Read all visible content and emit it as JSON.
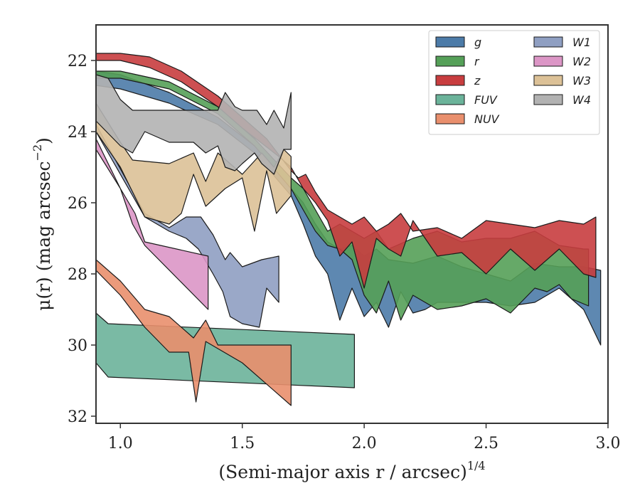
{
  "chart_data": {
    "type": "area",
    "xlabel": "(Semi-major axis r / arcsec)",
    "xlabel_sup": "1/4",
    "ylabel": "μ(r) (mag arcsec",
    "ylabel_sup": "−2",
    "ylabel_close": ")",
    "xlim": [
      0.9,
      3.0
    ],
    "ylim": [
      32.2,
      21.0
    ],
    "y_inverted": true,
    "xticks": [
      1.0,
      1.5,
      2.0,
      2.5,
      3.0
    ],
    "xtick_labels": [
      "1.0",
      "1.5",
      "2.0",
      "2.5",
      "3.0"
    ],
    "yticks": [
      22,
      24,
      26,
      28,
      30,
      32
    ],
    "ytick_labels": [
      "22",
      "24",
      "26",
      "28",
      "30",
      "32"
    ],
    "legend_position": "top-right",
    "series": [
      {
        "name": "g",
        "color": "#4c7ba8",
        "upper": [
          [
            0.9,
            22.3
          ],
          [
            1.0,
            22.4
          ],
          [
            1.2,
            22.9
          ],
          [
            1.4,
            23.6
          ],
          [
            1.55,
            24.4
          ],
          [
            1.7,
            25.6
          ],
          [
            1.75,
            26.0
          ],
          [
            1.8,
            26.6
          ],
          [
            1.85,
            27.1
          ],
          [
            1.9,
            27.3
          ],
          [
            1.95,
            27.2
          ],
          [
            2.0,
            27.5
          ],
          [
            2.05,
            27.3
          ],
          [
            2.1,
            27.6
          ],
          [
            2.2,
            27.7
          ],
          [
            2.3,
            27.5
          ],
          [
            2.4,
            27.8
          ],
          [
            2.5,
            28.0
          ],
          [
            2.6,
            28.2
          ],
          [
            2.7,
            27.7
          ],
          [
            2.8,
            27.8
          ],
          [
            2.9,
            27.8
          ],
          [
            2.97,
            27.9
          ]
        ],
        "lower": [
          [
            2.97,
            30.0
          ],
          [
            2.9,
            29.0
          ],
          [
            2.8,
            28.4
          ],
          [
            2.7,
            28.8
          ],
          [
            2.6,
            28.9
          ],
          [
            2.5,
            28.8
          ],
          [
            2.4,
            28.8
          ],
          [
            2.3,
            28.8
          ],
          [
            2.25,
            29.0
          ],
          [
            2.2,
            29.1
          ],
          [
            2.15,
            28.5
          ],
          [
            2.1,
            29.5
          ],
          [
            2.05,
            28.8
          ],
          [
            2.0,
            29.2
          ],
          [
            1.95,
            28.4
          ],
          [
            1.9,
            29.3
          ],
          [
            1.85,
            28.0
          ],
          [
            1.8,
            27.5
          ],
          [
            1.75,
            26.6
          ],
          [
            1.7,
            25.8
          ],
          [
            1.55,
            24.6
          ],
          [
            1.4,
            23.8
          ],
          [
            1.2,
            23.2
          ],
          [
            1.0,
            22.8
          ],
          [
            0.9,
            22.7
          ]
        ]
      },
      {
        "name": "r",
        "color": "#55a058",
        "upper": [
          [
            0.9,
            22.3
          ],
          [
            1.0,
            22.3
          ],
          [
            1.2,
            22.6
          ],
          [
            1.4,
            23.3
          ],
          [
            1.55,
            24.2
          ],
          [
            1.7,
            25.3
          ],
          [
            1.75,
            25.6
          ],
          [
            1.8,
            26.2
          ],
          [
            1.85,
            26.8
          ],
          [
            1.9,
            26.6
          ],
          [
            1.95,
            26.8
          ],
          [
            2.0,
            27.0
          ],
          [
            2.05,
            26.8
          ],
          [
            2.1,
            27.3
          ],
          [
            2.2,
            27.0
          ],
          [
            2.3,
            26.8
          ],
          [
            2.4,
            27.1
          ],
          [
            2.5,
            27.0
          ],
          [
            2.6,
            27.0
          ],
          [
            2.7,
            26.8
          ],
          [
            2.8,
            27.2
          ],
          [
            2.9,
            27.3
          ],
          [
            2.92,
            27.3
          ]
        ],
        "lower": [
          [
            2.92,
            28.9
          ],
          [
            2.85,
            28.7
          ],
          [
            2.8,
            28.3
          ],
          [
            2.75,
            28.5
          ],
          [
            2.7,
            28.4
          ],
          [
            2.6,
            29.1
          ],
          [
            2.5,
            28.7
          ],
          [
            2.4,
            28.9
          ],
          [
            2.3,
            29.0
          ],
          [
            2.2,
            28.6
          ],
          [
            2.15,
            29.3
          ],
          [
            2.1,
            28.2
          ],
          [
            2.05,
            29.1
          ],
          [
            2.0,
            28.6
          ],
          [
            1.95,
            27.6
          ],
          [
            1.9,
            27.3
          ],
          [
            1.85,
            27.2
          ],
          [
            1.8,
            26.8
          ],
          [
            1.75,
            26.2
          ],
          [
            1.7,
            25.6
          ],
          [
            1.55,
            24.4
          ],
          [
            1.4,
            23.5
          ],
          [
            1.2,
            22.8
          ],
          [
            1.0,
            22.5
          ],
          [
            0.9,
            22.5
          ]
        ]
      },
      {
        "name": "z",
        "color": "#c83d3f",
        "upper": [
          [
            0.9,
            21.8
          ],
          [
            1.0,
            21.8
          ],
          [
            1.12,
            21.9
          ],
          [
            1.25,
            22.3
          ],
          [
            1.4,
            23.0
          ],
          [
            1.5,
            23.6
          ],
          [
            1.6,
            24.2
          ],
          [
            1.7,
            25.1
          ],
          [
            1.73,
            25.3
          ],
          [
            1.76,
            25.2
          ],
          [
            1.8,
            25.7
          ],
          [
            1.85,
            26.2
          ],
          [
            1.9,
            26.4
          ],
          [
            1.95,
            26.6
          ],
          [
            2.0,
            26.4
          ],
          [
            2.05,
            26.8
          ],
          [
            2.1,
            26.6
          ],
          [
            2.15,
            26.3
          ],
          [
            2.2,
            26.8
          ],
          [
            2.3,
            26.7
          ],
          [
            2.4,
            27.0
          ],
          [
            2.5,
            26.5
          ],
          [
            2.6,
            26.6
          ],
          [
            2.7,
            26.7
          ],
          [
            2.8,
            26.5
          ],
          [
            2.9,
            26.6
          ],
          [
            2.95,
            26.4
          ]
        ],
        "lower": [
          [
            2.95,
            28.1
          ],
          [
            2.9,
            28.0
          ],
          [
            2.8,
            27.3
          ],
          [
            2.7,
            27.9
          ],
          [
            2.6,
            27.3
          ],
          [
            2.5,
            28.0
          ],
          [
            2.4,
            27.4
          ],
          [
            2.3,
            27.5
          ],
          [
            2.2,
            26.5
          ],
          [
            2.15,
            27.5
          ],
          [
            2.1,
            27.3
          ],
          [
            2.05,
            27.0
          ],
          [
            2.0,
            28.4
          ],
          [
            1.95,
            27.1
          ],
          [
            1.9,
            27.5
          ],
          [
            1.85,
            26.5
          ],
          [
            1.8,
            26.0
          ],
          [
            1.75,
            25.6
          ],
          [
            1.7,
            25.0
          ],
          [
            1.65,
            24.7
          ],
          [
            1.5,
            23.9
          ],
          [
            1.4,
            23.3
          ],
          [
            1.25,
            22.6
          ],
          [
            1.12,
            22.2
          ],
          [
            1.0,
            22.0
          ],
          [
            0.9,
            22.0
          ]
        ]
      },
      {
        "name": "FUV",
        "color": "#6bb39a",
        "upper": [
          [
            0.9,
            29.1
          ],
          [
            0.95,
            29.4
          ],
          [
            1.96,
            29.7
          ]
        ],
        "lower": [
          [
            1.96,
            31.2
          ],
          [
            0.95,
            30.9
          ],
          [
            0.9,
            30.5
          ]
        ]
      },
      {
        "name": "NUV",
        "color": "#e98f6d",
        "upper": [
          [
            0.9,
            27.6
          ],
          [
            1.0,
            28.2
          ],
          [
            1.1,
            29.0
          ],
          [
            1.2,
            29.2
          ],
          [
            1.3,
            29.8
          ],
          [
            1.35,
            29.3
          ],
          [
            1.4,
            30.0
          ],
          [
            1.7,
            30.0
          ]
        ],
        "lower": [
          [
            1.7,
            31.7
          ],
          [
            1.5,
            30.5
          ],
          [
            1.4,
            30.1
          ],
          [
            1.35,
            29.9
          ],
          [
            1.31,
            31.6
          ],
          [
            1.28,
            30.2
          ],
          [
            1.2,
            30.2
          ],
          [
            1.1,
            29.5
          ],
          [
            1.0,
            28.6
          ],
          [
            0.9,
            27.9
          ]
        ]
      },
      {
        "name": "W1",
        "color": "#8f9fc2",
        "upper": [
          [
            0.9,
            23.8
          ],
          [
            1.1,
            26.3
          ],
          [
            1.2,
            26.7
          ],
          [
            1.27,
            26.4
          ],
          [
            1.33,
            26.4
          ],
          [
            1.38,
            26.9
          ],
          [
            1.43,
            27.6
          ],
          [
            1.45,
            27.4
          ],
          [
            1.5,
            27.8
          ],
          [
            1.58,
            27.6
          ],
          [
            1.65,
            27.5
          ]
        ],
        "lower": [
          [
            1.65,
            28.8
          ],
          [
            1.6,
            28.4
          ],
          [
            1.57,
            29.5
          ],
          [
            1.5,
            29.4
          ],
          [
            1.45,
            29.2
          ],
          [
            1.42,
            28.5
          ],
          [
            1.38,
            28.0
          ],
          [
            1.32,
            27.3
          ],
          [
            1.27,
            27.0
          ],
          [
            1.2,
            26.8
          ],
          [
            1.1,
            26.4
          ],
          [
            0.9,
            24.0
          ]
        ]
      },
      {
        "name": "W2",
        "color": "#dc96c6",
        "upper": [
          [
            0.9,
            24.2
          ],
          [
            1.0,
            25.6
          ],
          [
            1.06,
            26.3
          ],
          [
            1.1,
            27.1
          ],
          [
            1.36,
            27.5
          ]
        ],
        "lower": [
          [
            1.36,
            29.0
          ],
          [
            1.1,
            27.2
          ],
          [
            1.05,
            26.6
          ],
          [
            1.0,
            25.6
          ],
          [
            0.9,
            24.5
          ]
        ]
      },
      {
        "name": "W3",
        "color": "#dcc197",
        "upper": [
          [
            0.9,
            23.2
          ],
          [
            1.0,
            24.3
          ],
          [
            1.05,
            24.8
          ],
          [
            1.2,
            24.9
          ],
          [
            1.3,
            24.6
          ],
          [
            1.35,
            25.4
          ],
          [
            1.4,
            24.6
          ],
          [
            1.5,
            25.2
          ],
          [
            1.58,
            24.6
          ],
          [
            1.63,
            25.0
          ],
          [
            1.67,
            24.5
          ],
          [
            1.7,
            24.7
          ]
        ],
        "lower": [
          [
            1.7,
            25.8
          ],
          [
            1.64,
            26.3
          ],
          [
            1.6,
            25.1
          ],
          [
            1.55,
            26.8
          ],
          [
            1.5,
            25.3
          ],
          [
            1.43,
            25.6
          ],
          [
            1.35,
            26.1
          ],
          [
            1.3,
            25.2
          ],
          [
            1.25,
            26.3
          ],
          [
            1.2,
            26.6
          ],
          [
            1.1,
            26.4
          ],
          [
            1.0,
            25.0
          ],
          [
            0.9,
            24.0
          ]
        ]
      },
      {
        "name": "W4",
        "color": "#b2b2b2",
        "upper": [
          [
            0.9,
            22.4
          ],
          [
            0.95,
            22.5
          ],
          [
            1.0,
            23.1
          ],
          [
            1.05,
            23.4
          ],
          [
            1.4,
            23.4
          ],
          [
            1.43,
            22.9
          ],
          [
            1.47,
            23.3
          ],
          [
            1.5,
            23.4
          ],
          [
            1.53,
            23.4
          ],
          [
            1.56,
            23.4
          ],
          [
            1.6,
            23.8
          ],
          [
            1.63,
            23.4
          ],
          [
            1.67,
            23.9
          ],
          [
            1.7,
            22.9
          ]
        ],
        "lower": [
          [
            1.7,
            24.5
          ],
          [
            1.67,
            24.5
          ],
          [
            1.63,
            25.2
          ],
          [
            1.58,
            24.9
          ],
          [
            1.55,
            24.6
          ],
          [
            1.5,
            24.9
          ],
          [
            1.47,
            25.1
          ],
          [
            1.43,
            25.0
          ],
          [
            1.4,
            24.4
          ],
          [
            1.35,
            24.6
          ],
          [
            1.3,
            24.3
          ],
          [
            1.2,
            24.3
          ],
          [
            1.1,
            24.0
          ],
          [
            1.05,
            24.6
          ],
          [
            1.0,
            24.4
          ],
          [
            0.9,
            23.7
          ]
        ]
      }
    ]
  }
}
